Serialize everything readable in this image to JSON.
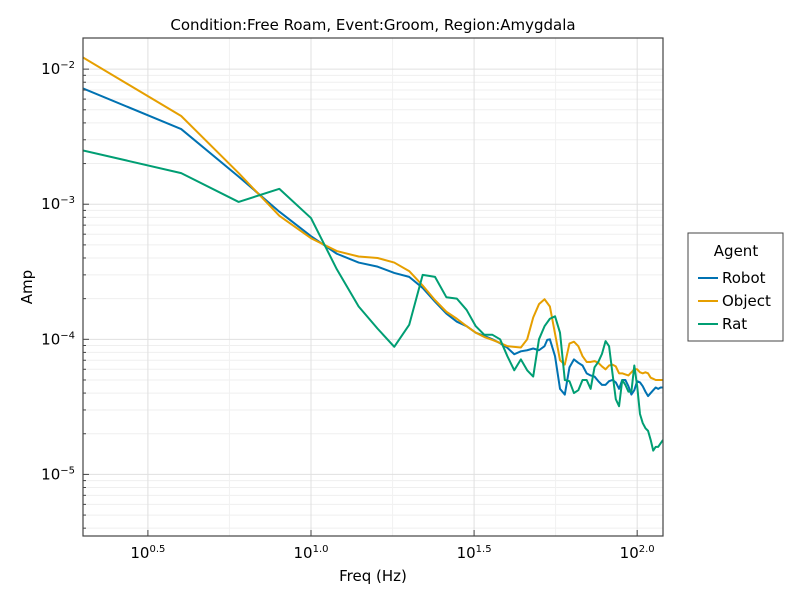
{
  "chart_data": {
    "type": "line",
    "title": "Condition:Free Roam, Event:Groom, Region:Amygdala",
    "xlabel": "Freq (Hz)",
    "ylabel": "Amp",
    "x_scale": "log10",
    "y_scale": "log10",
    "xlim": [
      2.0,
      120.0
    ],
    "ylim": [
      3.5e-06,
      0.017
    ],
    "grid": true,
    "legend": {
      "title": "Agent",
      "position": "right"
    },
    "x_ticks": [
      {
        "value": 3.1623,
        "base": "10",
        "exp": "0.5"
      },
      {
        "value": 10,
        "base": "10",
        "exp": "1.0"
      },
      {
        "value": 31.623,
        "base": "10",
        "exp": "1.5"
      },
      {
        "value": 100,
        "base": "10",
        "exp": "2.0"
      }
    ],
    "y_ticks": [
      {
        "value": 1e-05,
        "base": "10",
        "exp": "−5"
      },
      {
        "value": 0.0001,
        "base": "10",
        "exp": "−4"
      },
      {
        "value": 0.001,
        "base": "10",
        "exp": "−3"
      },
      {
        "value": 0.01,
        "base": "10",
        "exp": "−2"
      }
    ],
    "series": [
      {
        "name": "Robot",
        "color": "#0072b2",
        "x": [
          2.0,
          4.0,
          6.0,
          8.0,
          10.0,
          12.0,
          14.0,
          16.0,
          18.0,
          20.0,
          22.0,
          24.0,
          26.0,
          28.0,
          30.0,
          32.0,
          34.0,
          36.0,
          38.0,
          40.0,
          42.0,
          44.0,
          46.0,
          48.0,
          50.0,
          52.0,
          53.0,
          54.0,
          56.0,
          58.0,
          60.0,
          62.0,
          64.0,
          66.0,
          68.0,
          70.0,
          72.0,
          74.0,
          76.0,
          78.0,
          80.0,
          82.0,
          84.0,
          86.0,
          88.0,
          90.0,
          92.0,
          94.0,
          96.0,
          98.0,
          100.0,
          102.0,
          104.0,
          106.0,
          108.0,
          110.0,
          112.0,
          114.0,
          116.0,
          118.0,
          120.0
        ],
        "y": [
          0.0072,
          0.0036,
          0.0016,
          0.00088,
          0.00058,
          0.00043,
          0.00037,
          0.000345,
          0.00031,
          0.00029,
          0.00024,
          0.00019,
          0.000155,
          0.000135,
          0.000125,
          0.000112,
          0.000106,
          0.0001,
          9.35e-05,
          8.65e-05,
          7.75e-05,
          8.15e-05,
          8.3e-05,
          8.55e-05,
          8.3e-05,
          8.9e-05,
          9.9e-05,
          0.0001,
          7.5e-05,
          4.3e-05,
          3.9e-05,
          6.2e-05,
          7.1e-05,
          6.7e-05,
          6.4e-05,
          5.6e-05,
          5.4e-05,
          5.3e-05,
          4.9e-05,
          4.6e-05,
          4.6e-05,
          4.9e-05,
          5e-05,
          4.8e-05,
          4.3e-05,
          5e-05,
          5e-05,
          4.5e-05,
          3.9e-05,
          4.2e-05,
          4.9e-05,
          4.8e-05,
          4.5e-05,
          4.1e-05,
          3.8e-05,
          4e-05,
          4.2e-05,
          4.4e-05,
          4.3e-05,
          4.4e-05,
          4.4e-05
        ]
      },
      {
        "name": "Object",
        "color": "#e69f00",
        "x": [
          2.0,
          4.0,
          6.0,
          8.0,
          10.0,
          12.0,
          14.0,
          16.0,
          18.0,
          20.0,
          22.0,
          24.0,
          26.0,
          28.0,
          30.0,
          32.0,
          34.0,
          36.0,
          38.0,
          40.0,
          42.0,
          44.0,
          46.0,
          48.0,
          50.0,
          52.0,
          54.0,
          56.0,
          58.0,
          60.0,
          62.0,
          64.0,
          66.0,
          68.0,
          70.0,
          72.0,
          74.0,
          76.0,
          78.0,
          80.0,
          82.0,
          84.0,
          86.0,
          88.0,
          90.0,
          92.0,
          94.0,
          96.0,
          98.0,
          100.0,
          102.0,
          104.0,
          106.0,
          108.0,
          110.0,
          112.0,
          114.0,
          116.0,
          118.0,
          120.0
        ],
        "y": [
          0.0122,
          0.0045,
          0.0017,
          0.00082,
          0.00056,
          0.00045,
          0.00041,
          0.0004,
          0.00037,
          0.00032,
          0.00025,
          0.000195,
          0.00016,
          0.000142,
          0.000125,
          0.000112,
          0.000104,
          9.9e-05,
          9.4e-05,
          8.9e-05,
          8.8e-05,
          8.7e-05,
          0.0001,
          0.000145,
          0.000182,
          0.000198,
          0.000175,
          0.00011,
          7e-05,
          6.5e-05,
          9.3e-05,
          9.6e-05,
          8.9e-05,
          7.5e-05,
          6.8e-05,
          6.8e-05,
          6.9e-05,
          6.7e-05,
          6.3e-05,
          6e-05,
          6.4e-05,
          6.5e-05,
          6.3e-05,
          5.6e-05,
          5.6e-05,
          5.5e-05,
          5.4e-05,
          5.7e-05,
          6e-05,
          6e-05,
          5.7e-05,
          5.6e-05,
          5.7e-05,
          5.6e-05,
          5.2e-05,
          5.1e-05,
          5e-05,
          5e-05,
          5e-05,
          5e-05
        ]
      },
      {
        "name": "Rat",
        "color": "#009e73",
        "x": [
          2.0,
          4.0,
          6.0,
          8.0,
          10.0,
          12.0,
          14.0,
          16.0,
          18.0,
          20.0,
          22.0,
          23.0,
          24.0,
          26.0,
          28.0,
          30.0,
          32.0,
          34.0,
          36.0,
          38.0,
          40.0,
          42.0,
          44.0,
          46.0,
          48.0,
          50.0,
          52.0,
          54.0,
          56.0,
          58.0,
          60.0,
          62.0,
          64.0,
          66.0,
          68.0,
          70.0,
          72.0,
          74.0,
          76.0,
          78.0,
          80.0,
          82.0,
          84.0,
          86.0,
          88.0,
          90.0,
          92.0,
          94.0,
          96.0,
          98.0,
          100.0,
          102.0,
          104.0,
          106.0,
          108.0,
          110.0,
          112.0,
          114.0,
          116.0,
          118.0,
          120.0
        ],
        "y": [
          0.0025,
          0.0017,
          0.00104,
          0.0013,
          0.00079,
          0.00033,
          0.000175,
          0.00012,
          8.8e-05,
          0.000128,
          0.0003,
          0.000295,
          0.00029,
          0.000205,
          0.0002,
          0.000165,
          0.000125,
          0.000108,
          0.000108,
          0.0001,
          7.5e-05,
          5.9e-05,
          7.1e-05,
          5.9e-05,
          5.3e-05,
          0.0001,
          0.000125,
          0.000142,
          0.000148,
          0.000112,
          5e-05,
          4.9e-05,
          4e-05,
          4.2e-05,
          5e-05,
          5e-05,
          4.3e-05,
          6.2e-05,
          6.8e-05,
          7.8e-05,
          9.7e-05,
          8.9e-05,
          5.6e-05,
          3.6e-05,
          3.2e-05,
          5e-05,
          4.6e-05,
          4.1e-05,
          4.1e-05,
          6.4e-05,
          4.5e-05,
          2.8e-05,
          2.4e-05,
          2.2e-05,
          2.1e-05,
          1.8e-05,
          1.5e-05,
          1.6e-05,
          1.6e-05,
          1.7e-05,
          1.8e-05
        ]
      }
    ]
  }
}
